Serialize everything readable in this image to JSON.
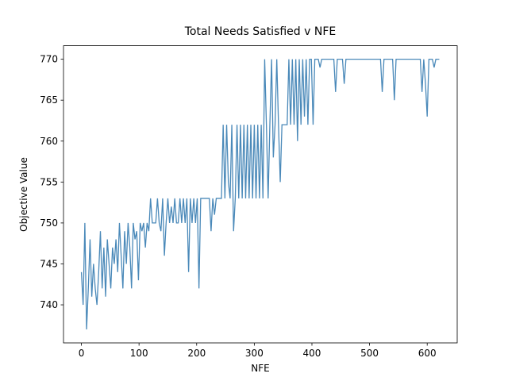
{
  "chart_data": {
    "type": "line",
    "title": "Total Needs Satisfied v NFE",
    "xlabel": "NFE",
    "ylabel": "Objective Value",
    "color": "#4a89b9",
    "x": [
      0,
      3,
      6,
      9,
      12,
      15,
      18,
      21,
      24,
      27,
      30,
      33,
      36,
      39,
      42,
      45,
      48,
      51,
      54,
      57,
      60,
      63,
      66,
      69,
      72,
      75,
      78,
      81,
      84,
      87,
      90,
      93,
      96,
      99,
      102,
      105,
      108,
      111,
      114,
      117,
      120,
      123,
      126,
      129,
      132,
      135,
      138,
      141,
      144,
      147,
      150,
      153,
      156,
      159,
      162,
      165,
      168,
      171,
      174,
      177,
      180,
      183,
      186,
      189,
      192,
      195,
      198,
      201,
      204,
      207,
      210,
      213,
      216,
      219,
      222,
      225,
      228,
      231,
      234,
      237,
      240,
      243,
      246,
      249,
      252,
      255,
      258,
      261,
      264,
      267,
      270,
      273,
      276,
      279,
      282,
      285,
      288,
      291,
      294,
      297,
      300,
      303,
      306,
      309,
      312,
      315,
      318,
      321,
      324,
      327,
      330,
      333,
      336,
      339,
      342,
      345,
      348,
      351,
      354,
      357,
      360,
      363,
      366,
      369,
      372,
      375,
      378,
      381,
      384,
      387,
      390,
      393,
      396,
      399,
      402,
      405,
      408,
      411,
      414,
      417,
      420,
      423,
      426,
      429,
      432,
      435,
      438,
      441,
      444,
      447,
      450,
      453,
      456,
      459,
      462,
      465,
      468,
      471,
      474,
      477,
      480,
      483,
      486,
      489,
      492,
      495,
      498,
      501,
      504,
      507,
      510,
      513,
      516,
      519,
      522,
      525,
      528,
      531,
      534,
      537,
      540,
      543,
      546,
      549,
      552,
      555,
      558,
      561,
      564,
      567,
      570,
      573,
      576,
      579,
      582,
      585,
      588,
      591,
      594,
      597,
      600,
      603,
      606,
      609,
      612,
      615,
      618,
      621
    ],
    "values": [
      744,
      740,
      750,
      737,
      742,
      748,
      741,
      745,
      742,
      740,
      744,
      749,
      742,
      747,
      741,
      748,
      745,
      742,
      747,
      745,
      748,
      744,
      750,
      746,
      742,
      749,
      745,
      750,
      747,
      742,
      750,
      748,
      749,
      743,
      750,
      749,
      750,
      747,
      750,
      749,
      753,
      750,
      750,
      750,
      753,
      750,
      749,
      753,
      746,
      750,
      753,
      750,
      752,
      750,
      753,
      750,
      750,
      753,
      750,
      753,
      750,
      753,
      744,
      753,
      750,
      753,
      750,
      753,
      742,
      753,
      753,
      753,
      753,
      753,
      753,
      749,
      753,
      751,
      753,
      753,
      753,
      753,
      762,
      753,
      762,
      755,
      753,
      762,
      749,
      753,
      762,
      753,
      762,
      753,
      762,
      753,
      762,
      753,
      762,
      753,
      762,
      753,
      762,
      753,
      762,
      753,
      770,
      762,
      753,
      762,
      770,
      758,
      762,
      770,
      762,
      755,
      762,
      762,
      762,
      762,
      770,
      762,
      770,
      762,
      770,
      760,
      770,
      762,
      770,
      763,
      770,
      762,
      770,
      770,
      762,
      770,
      770,
      770,
      769,
      770,
      770,
      770,
      770,
      770,
      770,
      770,
      770,
      766,
      770,
      770,
      770,
      770,
      767,
      770,
      770,
      770,
      770,
      770,
      770,
      770,
      770,
      770,
      770,
      770,
      770,
      770,
      770,
      770,
      770,
      770,
      770,
      770,
      770,
      770,
      766,
      770,
      770,
      770,
      770,
      770,
      770,
      765,
      770,
      770,
      770,
      770,
      770,
      770,
      770,
      770,
      770,
      770,
      770,
      770,
      770,
      770,
      770,
      766,
      770,
      767,
      763,
      770,
      770,
      770,
      769,
      770,
      770,
      770
    ],
    "xlim": [
      -31.05,
      652.05
    ],
    "ylim": [
      735.35,
      771.65
    ],
    "xticks": [
      0,
      100,
      200,
      300,
      400,
      500,
      600
    ],
    "yticks": [
      740,
      745,
      750,
      755,
      760,
      765,
      770
    ]
  }
}
